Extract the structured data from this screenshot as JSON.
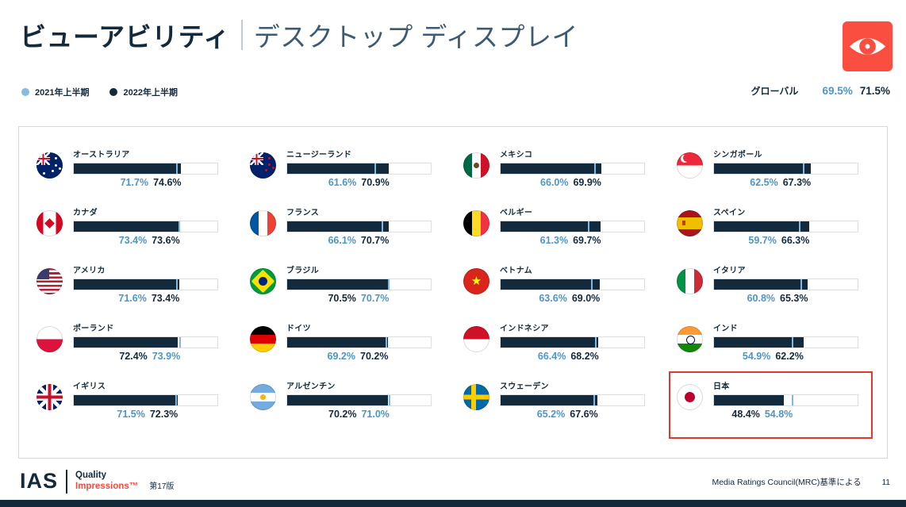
{
  "header": {
    "title_bold": "ビューアビリティ",
    "title_light": "デスクトップ ディスプレイ"
  },
  "legend": {
    "item_2021": "2021年上半期",
    "item_2022": "2022年上半期"
  },
  "global": {
    "label": "グローバル",
    "value_2021": "69.5%",
    "value_2022": "71.5%"
  },
  "footer": {
    "logo": "IAS",
    "quality": "Quality",
    "impressions": "Impressions™",
    "edition": "第17版",
    "source": "Media Ratings Council(MRC)基準による",
    "page": "11"
  },
  "colors": {
    "navy": "#13293C",
    "blue_2021": "#4E95C5",
    "legend_dot_2021": "#85BBDD",
    "coral": "#FA4F40",
    "highlight_red": "#E0382C"
  },
  "chart_data": {
    "type": "bar",
    "orientation": "horizontal",
    "title": "ビューアビリティ",
    "subtitle": "デスクトップ ディスプレイ",
    "unit": "%",
    "xlim": [
      0,
      100
    ],
    "series_names": [
      "2021年上半期",
      "2022年上半期"
    ],
    "global": {
      "name": "グローバル",
      "v2021": 69.5,
      "v2022": 71.5
    },
    "countries": [
      {
        "name": "オーストラリア",
        "flag": "australia",
        "v2021": 71.7,
        "v2022": 74.6,
        "highlight": false
      },
      {
        "name": "カナダ",
        "flag": "canada",
        "v2021": 73.4,
        "v2022": 73.6,
        "highlight": false
      },
      {
        "name": "アメリカ",
        "flag": "usa",
        "v2021": 71.6,
        "v2022": 73.4,
        "highlight": false
      },
      {
        "name": "ポーランド",
        "flag": "poland",
        "v2021": 73.9,
        "v2022": 72.4,
        "highlight": false
      },
      {
        "name": "イギリス",
        "flag": "uk",
        "v2021": 71.5,
        "v2022": 72.3,
        "highlight": false
      },
      {
        "name": "ニュージーランド",
        "flag": "newzealand",
        "v2021": 61.6,
        "v2022": 70.9,
        "highlight": false
      },
      {
        "name": "フランス",
        "flag": "france",
        "v2021": 66.1,
        "v2022": 70.7,
        "highlight": false
      },
      {
        "name": "ブラジル",
        "flag": "brazil",
        "v2021": 70.7,
        "v2022": 70.5,
        "highlight": false
      },
      {
        "name": "ドイツ",
        "flag": "germany",
        "v2021": 69.2,
        "v2022": 70.2,
        "highlight": false
      },
      {
        "name": "アルゼンチン",
        "flag": "argentina",
        "v2021": 71.0,
        "v2022": 70.2,
        "highlight": false
      },
      {
        "name": "メキシコ",
        "flag": "mexico",
        "v2021": 66.0,
        "v2022": 69.9,
        "highlight": false
      },
      {
        "name": "ベルギー",
        "flag": "belgium",
        "v2021": 61.3,
        "v2022": 69.7,
        "highlight": false
      },
      {
        "name": "ベトナム",
        "flag": "vietnam",
        "v2021": 63.6,
        "v2022": 69.0,
        "highlight": false
      },
      {
        "name": "インドネシア",
        "flag": "indonesia",
        "v2021": 66.4,
        "v2022": 68.2,
        "highlight": false
      },
      {
        "name": "スウェーデン",
        "flag": "sweden",
        "v2021": 65.2,
        "v2022": 67.6,
        "highlight": false
      },
      {
        "name": "シンガポール",
        "flag": "singapore",
        "v2021": 62.5,
        "v2022": 67.3,
        "highlight": false
      },
      {
        "name": "スペイン",
        "flag": "spain",
        "v2021": 59.7,
        "v2022": 66.3,
        "highlight": false
      },
      {
        "name": "イタリア",
        "flag": "italy",
        "v2021": 60.8,
        "v2022": 65.3,
        "highlight": false
      },
      {
        "name": "インド",
        "flag": "india",
        "v2021": 54.9,
        "v2022": 62.2,
        "highlight": false
      },
      {
        "name": "日本",
        "flag": "japan",
        "v2021": 54.8,
        "v2022": 48.4,
        "highlight": true
      }
    ]
  }
}
